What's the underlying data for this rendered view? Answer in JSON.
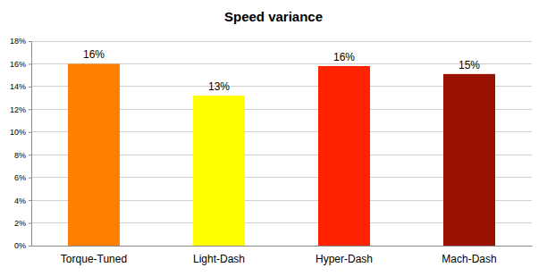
{
  "chart_data": {
    "type": "bar",
    "title": "Speed variance",
    "categories": [
      "Torque-Tuned",
      "Light-Dash",
      "Hyper-Dash",
      "Mach-Dash"
    ],
    "values": [
      16,
      13.2,
      15.8,
      15.1
    ],
    "value_labels": [
      "16%",
      "13%",
      "16%",
      "15%"
    ],
    "colors": [
      "#ff8000",
      "#ffff00",
      "#ff2200",
      "#991100"
    ],
    "ylim": [
      0,
      18
    ],
    "yticks": [
      {
        "value": 0,
        "label": "0%"
      },
      {
        "value": 2,
        "label": "2%"
      },
      {
        "value": 4,
        "label": "4%"
      },
      {
        "value": 6,
        "label": "6%"
      },
      {
        "value": 8,
        "label": "8%"
      },
      {
        "value": 10,
        "label": "10%"
      },
      {
        "value": 12,
        "label": "12%"
      },
      {
        "value": 14,
        "label": "14%"
      },
      {
        "value": 16,
        "label": "16%"
      },
      {
        "value": 18,
        "label": "18%"
      }
    ],
    "grid": true,
    "data_labels": true
  }
}
